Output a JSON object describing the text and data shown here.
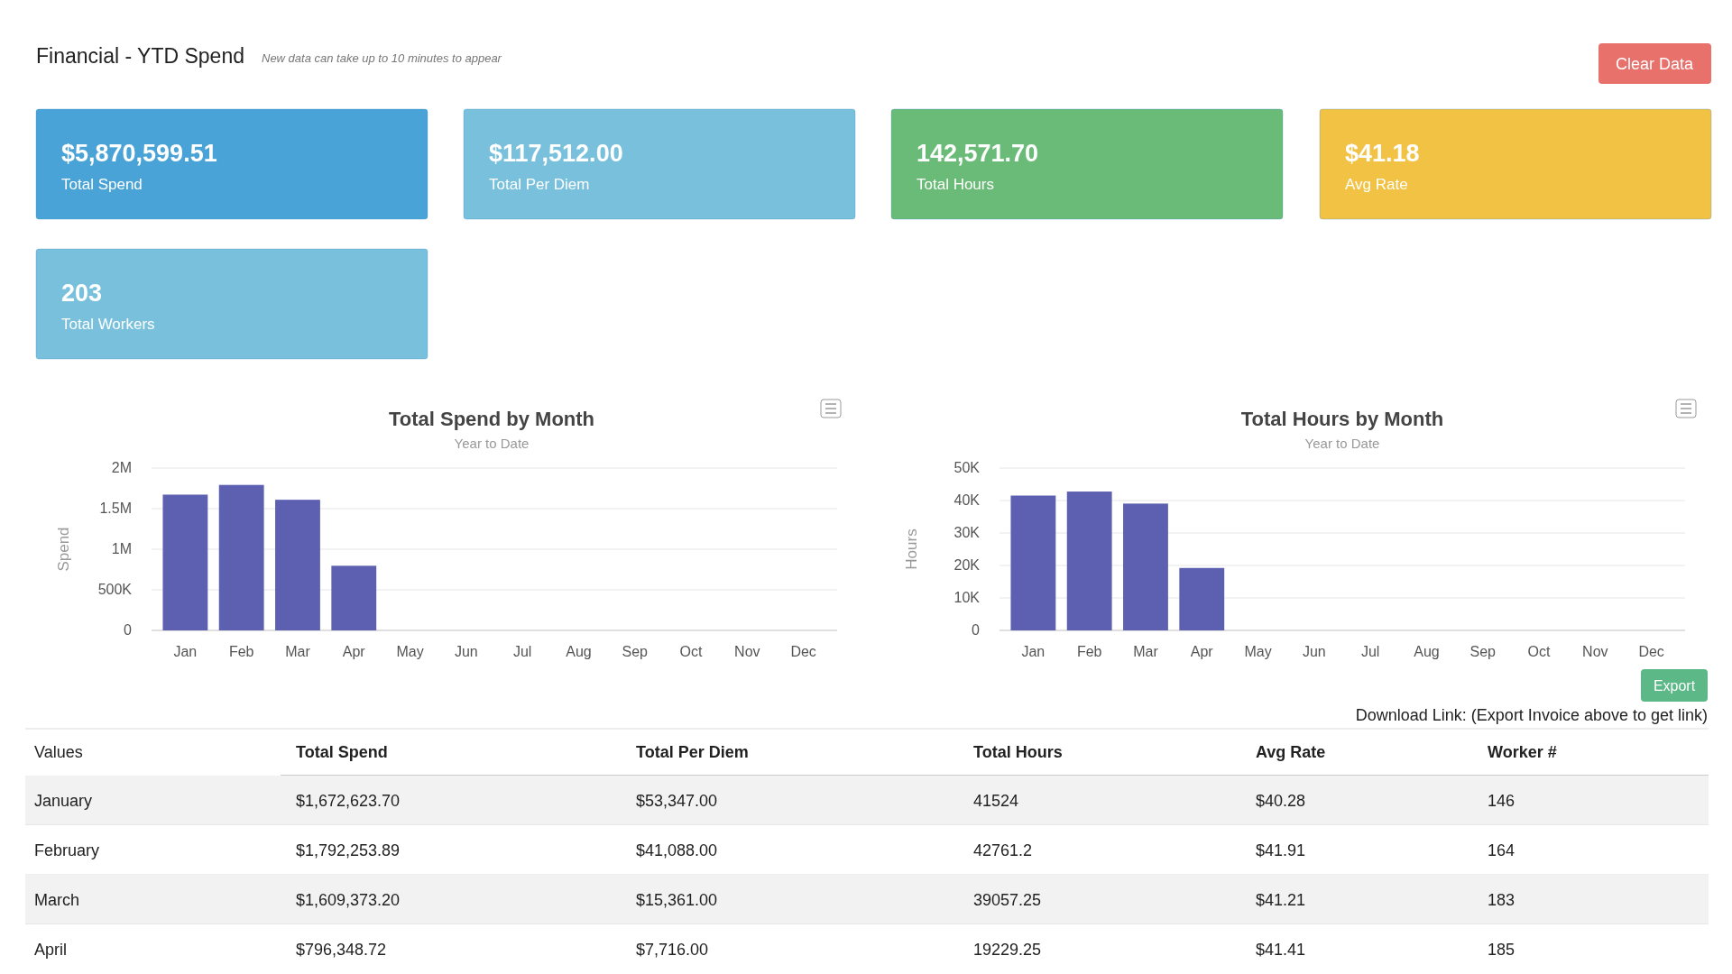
{
  "chart_data": [
    {
      "type": "other",
      "title": "Financial - YTD Spend",
      "subtitle": "New data can take up to 10 minutes to appear",
      "annotations": [
        "$5,870,599.51",
        "Total Spend",
        "$117,512.00",
        "Total Per Diem",
        "142,571.70",
        "Total Hours",
        "$41.18",
        "Avg Rate",
        "203",
        "Total Workers",
        "Clear Data"
      ]
    },
    {
      "type": "bar",
      "title": "Total Spend by Month",
      "subtitle": "Year to Date",
      "ylabel": "Spend",
      "categories": [
        "Jan",
        "Feb",
        "Mar",
        "Apr",
        "May",
        "Jun",
        "Jul",
        "Aug",
        "Sep",
        "Oct",
        "Nov",
        "Dec"
      ],
      "values": [
        1672623.7,
        1792253.89,
        1609373.2,
        796348.72,
        null,
        null,
        null,
        null,
        null,
        null,
        null,
        null
      ],
      "color": "#5d5fb0",
      "ylim": [
        0,
        2000000
      ],
      "yticks": [
        0,
        {
          "value": 500000,
          "label": "500K"
        },
        {
          "value": 1000000,
          "label": "1M"
        },
        {
          "value": 1500000,
          "label": "1.5M"
        },
        {
          "value": 2000000,
          "label": "2M"
        }
      ],
      "grid": "y"
    },
    {
      "type": "bar",
      "title": "Total Hours by Month",
      "subtitle": "Year to Date",
      "ylabel": "Hours",
      "categories": [
        "Jan",
        "Feb",
        "Mar",
        "Apr",
        "May",
        "Jun",
        "Jul",
        "Aug",
        "Sep",
        "Oct",
        "Nov",
        "Dec"
      ],
      "values": [
        41524,
        42761.2,
        39057.25,
        19229.25,
        null,
        null,
        null,
        null,
        null,
        null,
        null,
        null
      ],
      "color": "#5d5fb0",
      "ylim": [
        0,
        50000
      ],
      "yticks": [
        0,
        {
          "value": 10000,
          "label": "10K"
        },
        {
          "value": 20000,
          "label": "20K"
        },
        {
          "value": 30000,
          "label": "30K"
        },
        {
          "value": 40000,
          "label": "40K"
        },
        {
          "value": 50000,
          "label": "50K"
        }
      ],
      "grid": "y"
    },
    {
      "type": "other",
      "annotations": [
        "Export",
        "Download Link: (Export Invoice above to get link)",
        "Values",
        "Total Spend",
        "Total Per Diem",
        "Total Hours",
        "Avg Rate",
        "Worker #",
        "January",
        "$1,672,623.70",
        "$53,347.00",
        "41524",
        "$40.28",
        "146",
        "February",
        "$1,792,253.89",
        "$41,088.00",
        "42761.2",
        "$41.91",
        "164",
        "March",
        "$1,609,373.20",
        "$15,361.00",
        "39057.25",
        "$41.21",
        "183",
        "April",
        "$796,348.72",
        "$7,716.00",
        "19229.25",
        "$41.41",
        "185"
      ]
    }
  ]
}
